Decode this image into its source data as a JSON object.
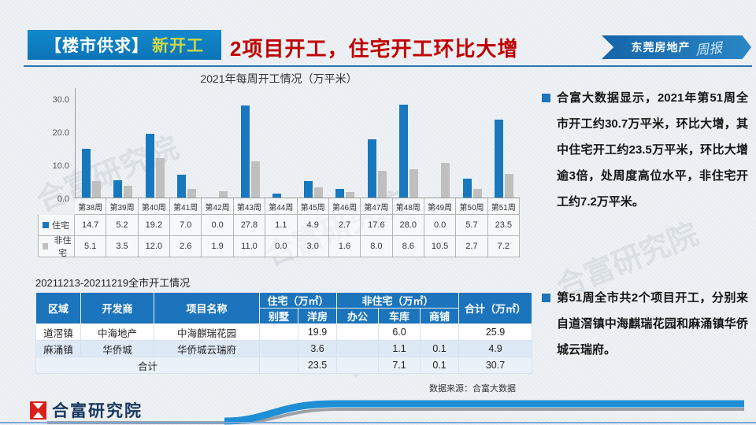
{
  "header": {
    "category_label": "【楼市供求】",
    "category_sub": "新开工",
    "title": "2项目开工，住宅开工环比大增",
    "ribbon_text": "东莞房地产",
    "ribbon_script": "周报"
  },
  "chart_data": {
    "type": "bar",
    "title": "2021年每周开工情况（万平米）",
    "categories": [
      "第38周",
      "第39周",
      "第40周",
      "第41周",
      "第42周",
      "第43周",
      "第44周",
      "第45周",
      "第46周",
      "第47周",
      "第48周",
      "第49周",
      "第50周",
      "第51周"
    ],
    "series": [
      {
        "name": "住宅",
        "color": "#1878be",
        "values": [
          14.7,
          5.2,
          19.2,
          7.0,
          0.0,
          27.8,
          1.1,
          4.9,
          2.7,
          17.6,
          28.0,
          0.0,
          5.7,
          23.5
        ]
      },
      {
        "name": "非住宅",
        "color": "#bfbfbf",
        "values": [
          5.1,
          3.5,
          12.0,
          2.6,
          1.9,
          11.0,
          0.0,
          3.0,
          1.6,
          8.0,
          8.6,
          10.5,
          2.7,
          7.2
        ]
      }
    ],
    "ylim": [
      0,
      30
    ],
    "yticks": [
      "30.0",
      "20.0",
      "10.0",
      "0.0"
    ],
    "grid": false,
    "legend_position": "data-table-left"
  },
  "bullets": [
    "合富大数据显示，2021年第51周全市开工约30.7万平米，环比大增，其中住宅开工约23.5万平米，环比大增逾3倍，处周度高位水平，非住宅开工约7.2万平米。",
    "第51周全市共2个项目开工，分别来自道滘镇中海麒瑞花园和麻涌镇华侨城云瑞府。"
  ],
  "project_table": {
    "title": "20211213-20211219全市开工情况",
    "headers": {
      "region": "区域",
      "developer": "开发商",
      "project": "项目名称",
      "res_group": "住宅（万㎡）",
      "nonres_group": "非住宅（万㎡）",
      "villa": "别墅",
      "house": "洋房",
      "office": "办公",
      "garage": "车库",
      "shop": "商铺",
      "total": "合计（万㎡）"
    },
    "rows": [
      {
        "region": "道滘镇",
        "developer": "中海地产",
        "project": "中海麒瑞花园",
        "villa": "",
        "house": "19.9",
        "office": "",
        "garage": "6.0",
        "shop": "",
        "total": "25.9"
      },
      {
        "region": "麻涌镇",
        "developer": "华侨城",
        "project": "华侨城云瑞府",
        "villa": "",
        "house": "3.6",
        "office": "",
        "garage": "1.1",
        "shop": "0.1",
        "total": "4.9"
      }
    ],
    "total_row": {
      "label": "合计",
      "villa": "",
      "house": "23.5",
      "office": "",
      "garage": "7.1",
      "shop": "0.1",
      "total": "30.7"
    }
  },
  "source": "数据来源：合富大数据",
  "footer": {
    "brand": "合富研究院"
  },
  "watermark": "合富研究院",
  "colors": {
    "banner_blue": "#0e7cc1",
    "title_red": "#c00000",
    "bar_blue": "#1878be",
    "bar_gray": "#bfbfbf",
    "table_header_blue": "#1b74bc",
    "rule_blue": "#2e74b5",
    "brand_navy": "#17375e"
  }
}
